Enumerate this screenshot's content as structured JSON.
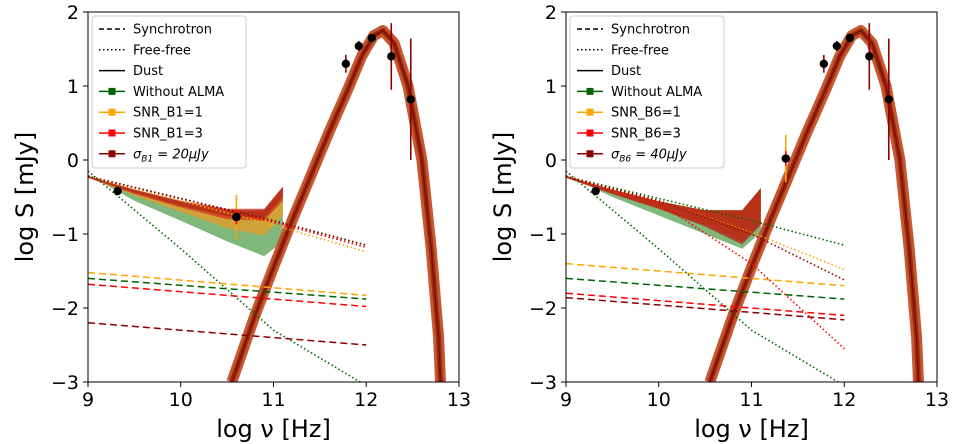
{
  "chart_data": [
    {
      "type": "line",
      "title": "",
      "xlabel": "log ν [Hz]",
      "ylabel": "log S [mJy]",
      "xlim": [
        9,
        13
      ],
      "ylim": [
        -3,
        2
      ],
      "xticks": [
        "9",
        "10",
        "11",
        "12",
        "13"
      ],
      "yticks": [
        "−3",
        "−2",
        "−1",
        "0",
        "1",
        "2"
      ],
      "legend_position": "top-left",
      "legend": [
        {
          "label": "Synchrotron",
          "style": "dashed",
          "color": "#000000"
        },
        {
          "label": "Free-free",
          "style": "dotted",
          "color": "#000000"
        },
        {
          "label": "Dust",
          "style": "solid",
          "color": "#000000"
        },
        {
          "label": "Without ALMA",
          "style": "marker",
          "color": "#006400"
        },
        {
          "label": "SNR_B1=1",
          "style": "marker",
          "color": "#ffa500"
        },
        {
          "label": "SNR_B1=3",
          "style": "marker",
          "color": "#ff0000"
        },
        {
          "label": "σ",
          "sub": "B1",
          "eq": " = 20μJy",
          "style": "marker",
          "color": "#8b0000"
        }
      ],
      "series": [
        {
          "color": "#006400",
          "fill": "#6aaa64",
          "synchrotron": [
            [
              9,
              -1.6
            ],
            [
              12,
              -1.88
            ]
          ],
          "freefree_total": [
            [
              9,
              -0.22
            ],
            [
              10,
              -0.52
            ],
            [
              11,
              -0.82
            ],
            [
              12,
              -1.15
            ]
          ],
          "freefree_steep": [
            [
              9,
              -0.15
            ],
            [
              10,
              -1.2
            ],
            [
              11,
              -2.3
            ],
            [
              12,
              -3.05
            ]
          ],
          "band_low": [
            [
              9,
              -0.2
            ],
            [
              9.5,
              -0.55
            ],
            [
              10,
              -0.82
            ],
            [
              10.5,
              -1.1
            ],
            [
              10.9,
              -1.3
            ],
            [
              11.1,
              -1.1
            ]
          ],
          "band_high": [
            [
              9,
              -0.22
            ],
            [
              9.5,
              -0.45
            ],
            [
              10,
              -0.58
            ],
            [
              10.5,
              -0.7
            ],
            [
              10.9,
              -0.68
            ],
            [
              11.1,
              -0.38
            ]
          ]
        },
        {
          "color": "#ffa500",
          "fill": "#e39c2a",
          "synchrotron": [
            [
              9,
              -1.52
            ],
            [
              12,
              -1.83
            ]
          ],
          "freefree_total": [
            [
              9,
              -0.22
            ],
            [
              10,
              -0.55
            ],
            [
              11,
              -0.88
            ],
            [
              12,
              -1.24
            ]
          ],
          "band_low": [
            [
              9,
              -0.24
            ],
            [
              9.5,
              -0.48
            ],
            [
              10,
              -0.7
            ],
            [
              10.5,
              -0.92
            ],
            [
              10.9,
              -1.02
            ],
            [
              11.1,
              -0.75
            ]
          ],
          "band_high": [
            [
              9,
              -0.22
            ],
            [
              9.5,
              -0.42
            ],
            [
              10,
              -0.6
            ],
            [
              10.5,
              -0.7
            ],
            [
              10.9,
              -0.7
            ],
            [
              11.1,
              -0.4
            ]
          ]
        },
        {
          "color": "#ff0000",
          "fill": "#d23b1e",
          "synchrotron": [
            [
              9,
              -1.68
            ],
            [
              12,
              -1.98
            ]
          ],
          "freefree_total": [
            [
              9,
              -0.22
            ],
            [
              10,
              -0.52
            ],
            [
              11,
              -0.84
            ],
            [
              12,
              -1.18
            ]
          ],
          "band_low": [
            [
              9,
              -0.24
            ],
            [
              9.5,
              -0.46
            ],
            [
              10,
              -0.64
            ],
            [
              10.5,
              -0.8
            ],
            [
              10.9,
              -0.82
            ],
            [
              11.1,
              -0.55
            ]
          ],
          "band_high": [
            [
              9,
              -0.22
            ],
            [
              9.5,
              -0.4
            ],
            [
              10,
              -0.55
            ],
            [
              10.5,
              -0.66
            ],
            [
              10.9,
              -0.66
            ],
            [
              11.1,
              -0.36
            ]
          ]
        },
        {
          "color": "#8b0000",
          "fill": "#b22a16",
          "synchrotron": [
            [
              9,
              -2.2
            ],
            [
              12,
              -2.5
            ]
          ],
          "freefree_total": [
            [
              9,
              -0.22
            ],
            [
              10,
              -0.52
            ],
            [
              11,
              -0.82
            ],
            [
              12,
              -1.15
            ]
          ],
          "band_low": [
            [
              9,
              -0.24
            ],
            [
              9.5,
              -0.44
            ],
            [
              10,
              -0.62
            ],
            [
              10.5,
              -0.76
            ],
            [
              10.9,
              -0.78
            ],
            [
              11.1,
              -0.5
            ]
          ],
          "band_high": [
            [
              9,
              -0.22
            ],
            [
              9.5,
              -0.4
            ],
            [
              10,
              -0.56
            ],
            [
              10.5,
              -0.68
            ],
            [
              10.9,
              -0.68
            ],
            [
              11.1,
              -0.36
            ]
          ]
        }
      ],
      "dust": [
        [
          10.55,
          -3.0
        ],
        [
          10.8,
          -2.1
        ],
        [
          11.0,
          -1.45
        ],
        [
          11.2,
          -0.82
        ],
        [
          11.4,
          -0.22
        ],
        [
          11.6,
          0.38
        ],
        [
          11.8,
          0.95
        ],
        [
          11.95,
          1.4
        ],
        [
          12.08,
          1.68
        ],
        [
          12.18,
          1.75
        ],
        [
          12.3,
          1.58
        ],
        [
          12.45,
          1.0
        ],
        [
          12.6,
          0.0
        ],
        [
          12.7,
          -1.2
        ],
        [
          12.78,
          -2.4
        ],
        [
          12.8,
          -3.0
        ]
      ],
      "points": [
        {
          "x": 9.32,
          "y": -0.42,
          "err": 0.03,
          "color": "#000000"
        },
        {
          "x": 10.6,
          "y": -0.77,
          "err": 0.3,
          "color": "#ffa500"
        },
        {
          "x": 10.6,
          "y": -0.77,
          "err": 0.1,
          "color": "#ff0000"
        },
        {
          "x": 11.78,
          "y": 1.3,
          "err": 0.12,
          "color": "#8b0000"
        },
        {
          "x": 11.92,
          "y": 1.54,
          "err": 0.07,
          "color": "#8b0000"
        },
        {
          "x": 12.06,
          "y": 1.65,
          "err": 0.05,
          "color": "#8b0000"
        },
        {
          "x": 12.27,
          "y": 1.4,
          "err": 0.45,
          "color": "#8b0000"
        },
        {
          "x": 12.48,
          "y": 0.82,
          "err": 0.82,
          "color": "#8b0000"
        }
      ]
    },
    {
      "type": "line",
      "title": "",
      "xlabel": "log ν [Hz]",
      "ylabel": "log S [mJy]",
      "xlim": [
        9,
        13
      ],
      "ylim": [
        -3,
        2
      ],
      "xticks": [
        "9",
        "10",
        "11",
        "12",
        "13"
      ],
      "yticks": [
        "−3",
        "−2",
        "−1",
        "0",
        "1",
        "2"
      ],
      "legend_position": "top-left",
      "legend": [
        {
          "label": "Synchrotron",
          "style": "dashed",
          "color": "#000000"
        },
        {
          "label": "Free-free",
          "style": "dotted",
          "color": "#000000"
        },
        {
          "label": "Dust",
          "style": "solid",
          "color": "#000000"
        },
        {
          "label": "Without ALMA",
          "style": "marker",
          "color": "#006400"
        },
        {
          "label": "SNR_B6=1",
          "style": "marker",
          "color": "#ffa500"
        },
        {
          "label": "SNR_B6=3",
          "style": "marker",
          "color": "#ff0000"
        },
        {
          "label": "σ",
          "sub": "B6",
          "eq": " = 40μJy",
          "style": "marker",
          "color": "#8b0000"
        }
      ],
      "series": [
        {
          "color": "#006400",
          "fill": "#6aaa64",
          "synchrotron": [
            [
              9,
              -1.6
            ],
            [
              12,
              -1.88
            ]
          ],
          "freefree_total": [
            [
              9,
              -0.22
            ],
            [
              10,
              -0.52
            ],
            [
              11,
              -0.82
            ],
            [
              12,
              -1.15
            ]
          ],
          "freefree_steep": [
            [
              9,
              -0.15
            ],
            [
              10,
              -1.2
            ],
            [
              11,
              -2.3
            ],
            [
              12,
              -3.05
            ]
          ],
          "band_low": [
            [
              9,
              -0.2
            ],
            [
              9.5,
              -0.5
            ],
            [
              10,
              -0.75
            ],
            [
              10.5,
              -1.0
            ],
            [
              10.9,
              -1.2
            ],
            [
              11.1,
              -0.98
            ]
          ],
          "band_high": [
            [
              9,
              -0.22
            ],
            [
              9.5,
              -0.42
            ],
            [
              10,
              -0.58
            ],
            [
              10.5,
              -0.7
            ],
            [
              10.9,
              -0.68
            ],
            [
              11.1,
              -0.38
            ]
          ]
        },
        {
          "color": "#ffa500",
          "fill": "#e39c2a",
          "synchrotron": [
            [
              9,
              -1.4
            ],
            [
              12,
              -1.7
            ]
          ],
          "freefree_total": [
            [
              9,
              -0.22
            ],
            [
              10,
              -0.55
            ],
            [
              11,
              -0.98
            ],
            [
              12,
              -1.48
            ]
          ],
          "band_low": [
            [
              9,
              -0.24
            ],
            [
              9.5,
              -0.46
            ],
            [
              10,
              -0.66
            ],
            [
              10.5,
              -0.86
            ],
            [
              10.9,
              -0.98
            ],
            [
              11.1,
              -0.72
            ]
          ],
          "band_high": [
            [
              9,
              -0.22
            ],
            [
              9.5,
              -0.4
            ],
            [
              10,
              -0.56
            ],
            [
              10.5,
              -0.68
            ],
            [
              10.9,
              -0.68
            ],
            [
              11.1,
              -0.38
            ]
          ]
        },
        {
          "color": "#ff0000",
          "fill": "#d23b1e",
          "synchrotron": [
            [
              9,
              -1.8
            ],
            [
              12,
              -2.1
            ]
          ],
          "freefree_total": [
            [
              9,
              -0.22
            ],
            [
              10,
              -0.58
            ],
            [
              11,
              -1.4
            ],
            [
              12,
              -2.55
            ]
          ],
          "band_low": [
            [
              9,
              -0.24
            ],
            [
              9.5,
              -0.46
            ],
            [
              10,
              -0.66
            ],
            [
              10.5,
              -0.88
            ],
            [
              10.9,
              -1.1
            ],
            [
              11.1,
              -0.85
            ]
          ],
          "band_high": [
            [
              9,
              -0.22
            ],
            [
              9.5,
              -0.4
            ],
            [
              10,
              -0.56
            ],
            [
              10.5,
              -0.68
            ],
            [
              10.9,
              -0.68
            ],
            [
              11.1,
              -0.38
            ]
          ]
        },
        {
          "color": "#8b0000",
          "fill": "#b22a16",
          "synchrotron": [
            [
              9,
              -1.86
            ],
            [
              12,
              -2.16
            ]
          ],
          "freefree_total": [
            [
              9,
              -0.22
            ],
            [
              10,
              -0.55
            ],
            [
              11,
              -1.0
            ],
            [
              12,
              -1.62
            ]
          ],
          "band_low": [
            [
              9,
              -0.24
            ],
            [
              9.5,
              -0.46
            ],
            [
              10,
              -0.66
            ],
            [
              10.5,
              -0.9
            ],
            [
              10.9,
              -1.14
            ],
            [
              11.1,
              -0.88
            ]
          ],
          "band_high": [
            [
              9,
              -0.22
            ],
            [
              9.5,
              -0.4
            ],
            [
              10,
              -0.56
            ],
            [
              10.5,
              -0.68
            ],
            [
              10.9,
              -0.68
            ],
            [
              11.1,
              -0.38
            ]
          ]
        }
      ],
      "dust": [
        [
          10.55,
          -3.0
        ],
        [
          10.8,
          -2.1
        ],
        [
          11.0,
          -1.45
        ],
        [
          11.2,
          -0.82
        ],
        [
          11.4,
          -0.22
        ],
        [
          11.6,
          0.38
        ],
        [
          11.8,
          0.95
        ],
        [
          11.95,
          1.4
        ],
        [
          12.08,
          1.68
        ],
        [
          12.18,
          1.75
        ],
        [
          12.3,
          1.58
        ],
        [
          12.45,
          1.0
        ],
        [
          12.6,
          0.0
        ],
        [
          12.7,
          -1.2
        ],
        [
          12.78,
          -2.4
        ],
        [
          12.8,
          -3.0
        ]
      ],
      "points": [
        {
          "x": 9.32,
          "y": -0.42,
          "err": 0.03,
          "color": "#000000"
        },
        {
          "x": 11.37,
          "y": 0.02,
          "err": 0.32,
          "color": "#ffa500"
        },
        {
          "x": 11.37,
          "y": 0.02,
          "err": 0.1,
          "color": "#ff0000"
        },
        {
          "x": 11.78,
          "y": 1.3,
          "err": 0.12,
          "color": "#8b0000"
        },
        {
          "x": 11.92,
          "y": 1.54,
          "err": 0.07,
          "color": "#8b0000"
        },
        {
          "x": 12.06,
          "y": 1.65,
          "err": 0.05,
          "color": "#8b0000"
        },
        {
          "x": 12.27,
          "y": 1.4,
          "err": 0.45,
          "color": "#8b0000"
        },
        {
          "x": 12.48,
          "y": 0.82,
          "err": 0.82,
          "color": "#8b0000"
        }
      ]
    }
  ]
}
